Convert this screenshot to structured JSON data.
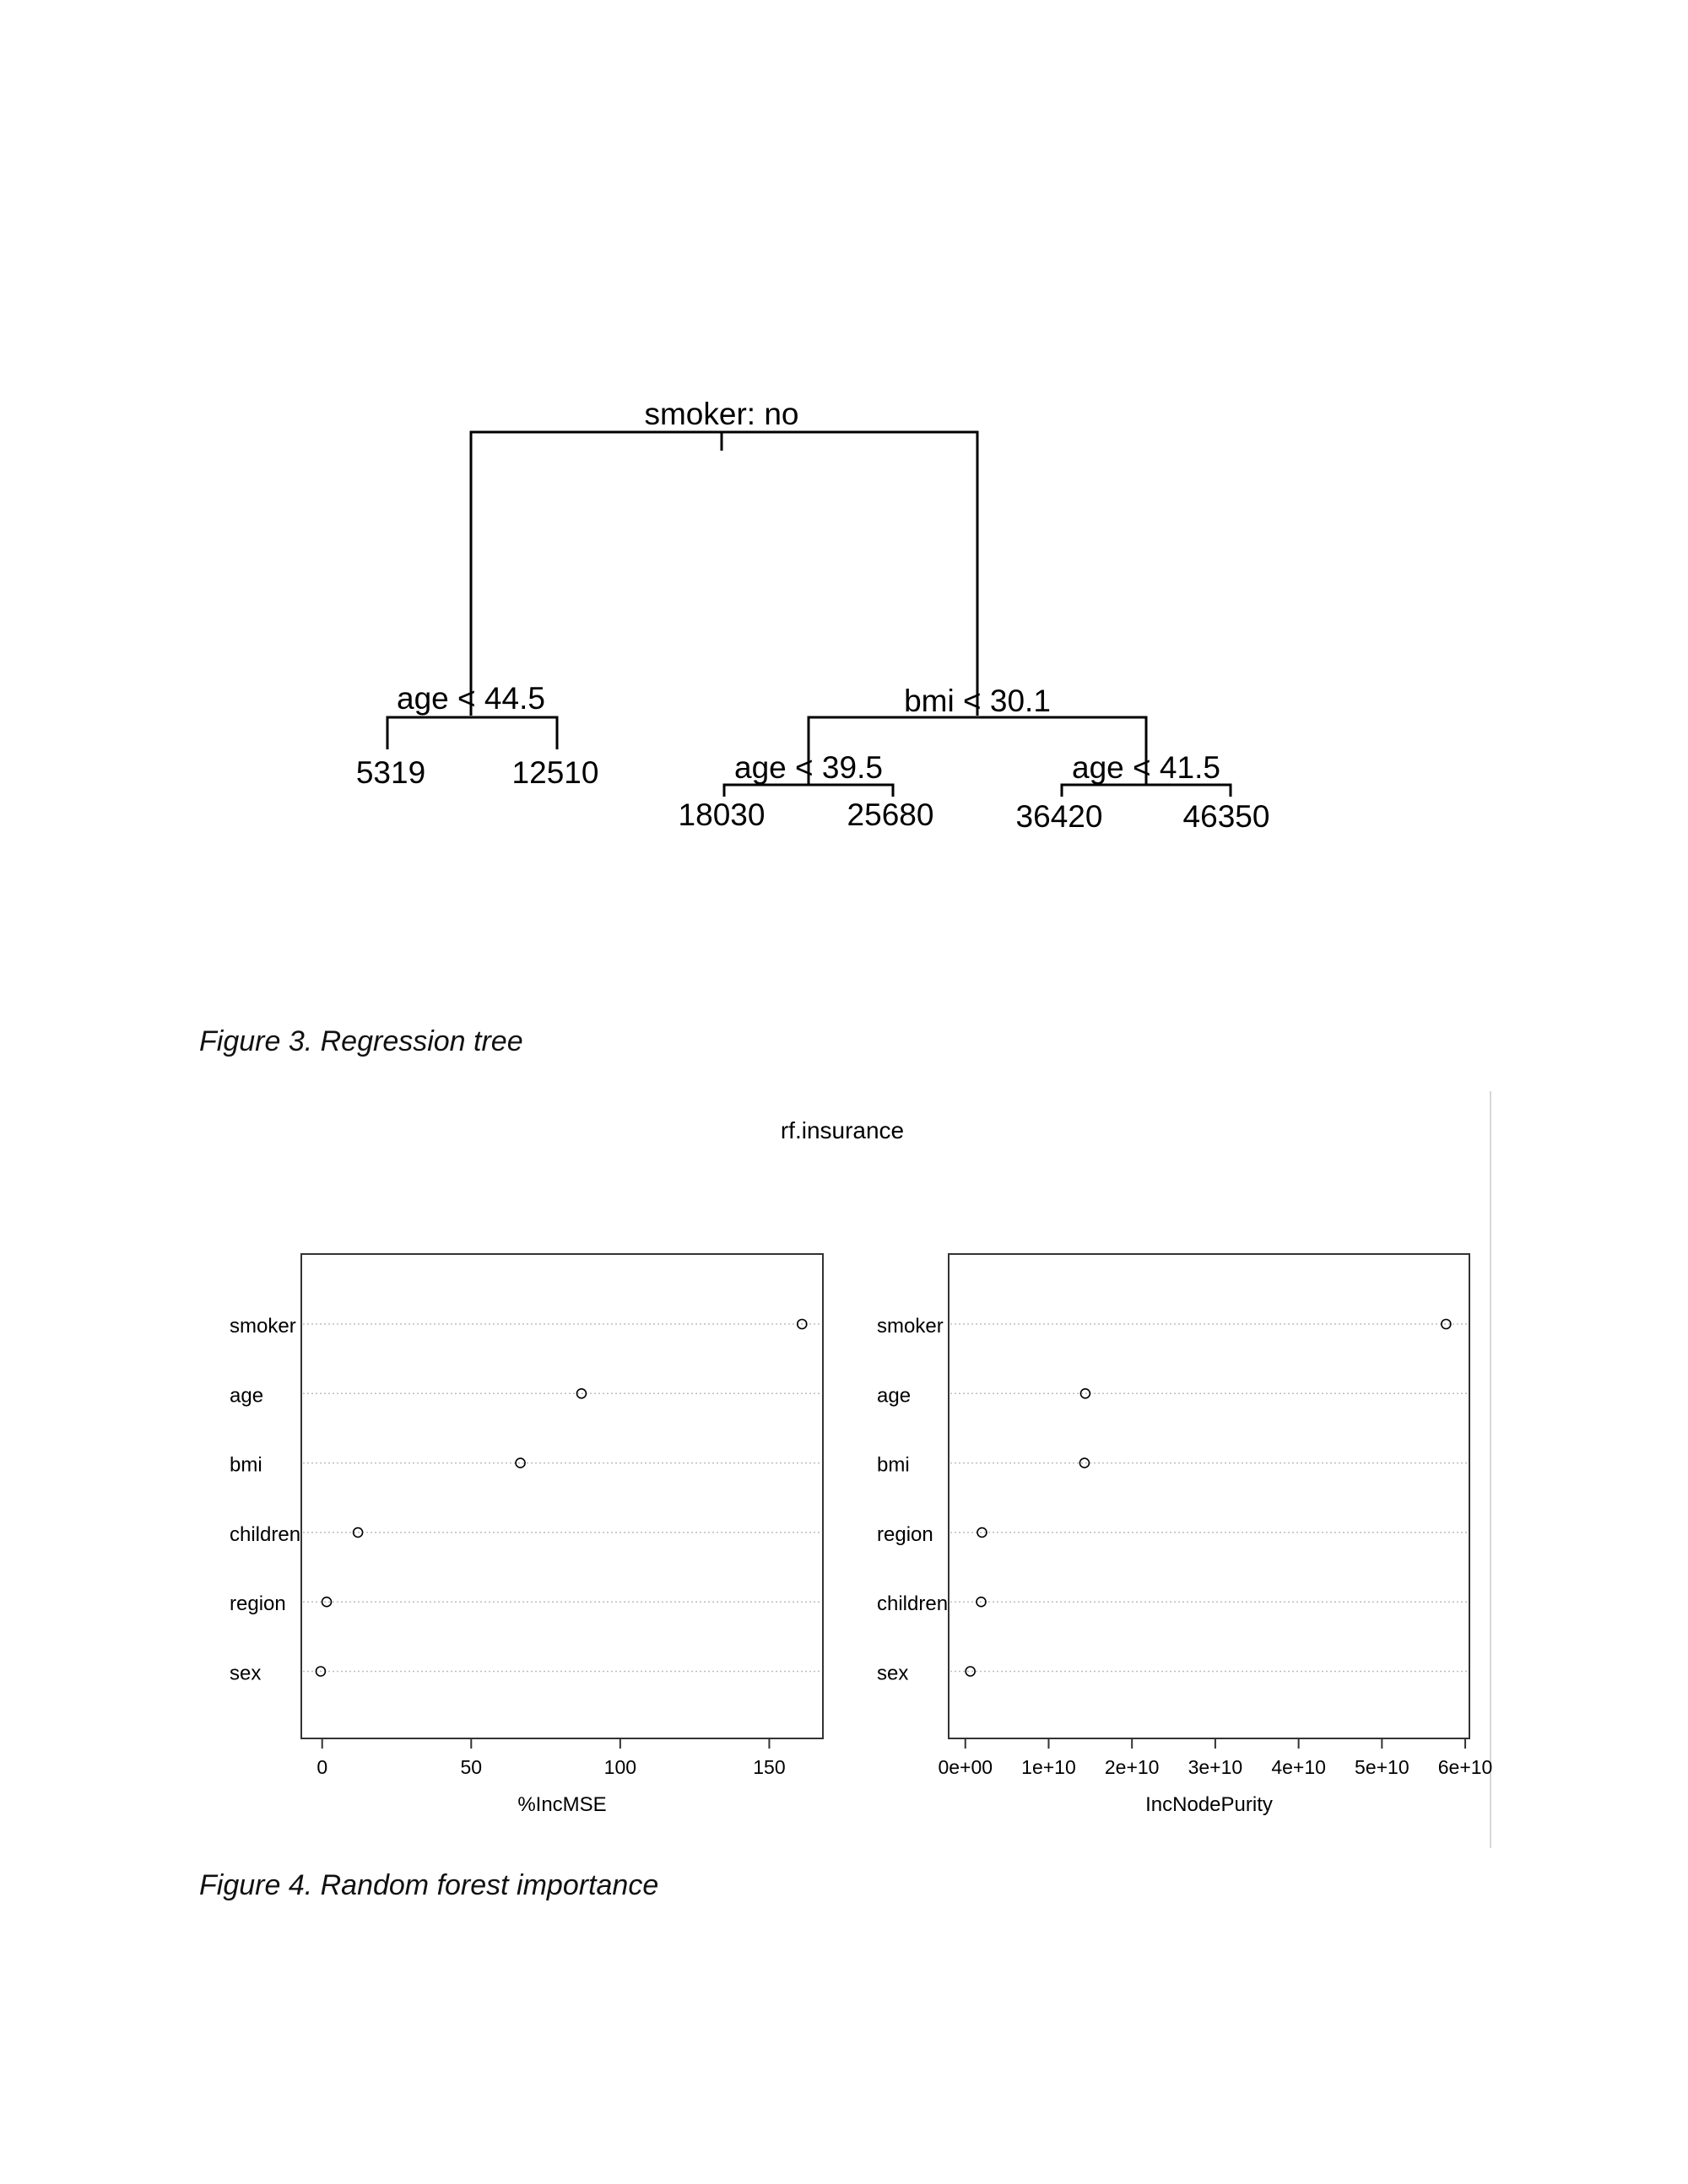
{
  "regression_tree": {
    "root_label": "smoker: no",
    "nodes": {
      "left_split": "age < 44.5",
      "right_split": "bmi < 30.1",
      "right_left_split": "age < 39.5",
      "right_right_split": "age < 41.5"
    },
    "leaves": [
      "5319",
      "12510",
      "18030",
      "25680",
      "36420",
      "46350"
    ]
  },
  "captions": {
    "figure3": "Figure 3. Regression tree",
    "figure4": "Figure 4. Random forest importance"
  },
  "chart_data": [
    {
      "type": "scatter",
      "title": "rf.insurance",
      "xlabel": "%IncMSE",
      "ylabel": "",
      "categories": [
        "smoker",
        "age",
        "bmi",
        "children",
        "region",
        "sex"
      ],
      "values": [
        161,
        87,
        66.5,
        12,
        1.5,
        -0.5
      ],
      "xlim": [
        -7,
        168
      ],
      "xticks": [
        0,
        50,
        100,
        150
      ],
      "xtick_labels": [
        "0",
        "50",
        "100",
        "150"
      ],
      "grid": "horizontal dotted"
    },
    {
      "type": "scatter",
      "title": "",
      "xlabel": "IncNodePurity",
      "ylabel": "",
      "categories": [
        "smoker",
        "age",
        "bmi",
        "region",
        "children",
        "sex"
      ],
      "values": [
        57700000000.0,
        14400000000.0,
        14300000000.0,
        2000000000.0,
        1900000000.0,
        600000000.0
      ],
      "xlim": [
        -2000000000.0,
        60500000000.0
      ],
      "xticks": [
        0,
        10000000000.0,
        20000000000.0,
        30000000000.0,
        40000000000.0,
        50000000000.0,
        60000000000.0
      ],
      "xtick_labels": [
        "0e+00",
        "1e+10",
        "2e+10",
        "3e+10",
        "4e+10",
        "5e+10",
        "6e+10"
      ],
      "grid": "horizontal dotted"
    }
  ]
}
